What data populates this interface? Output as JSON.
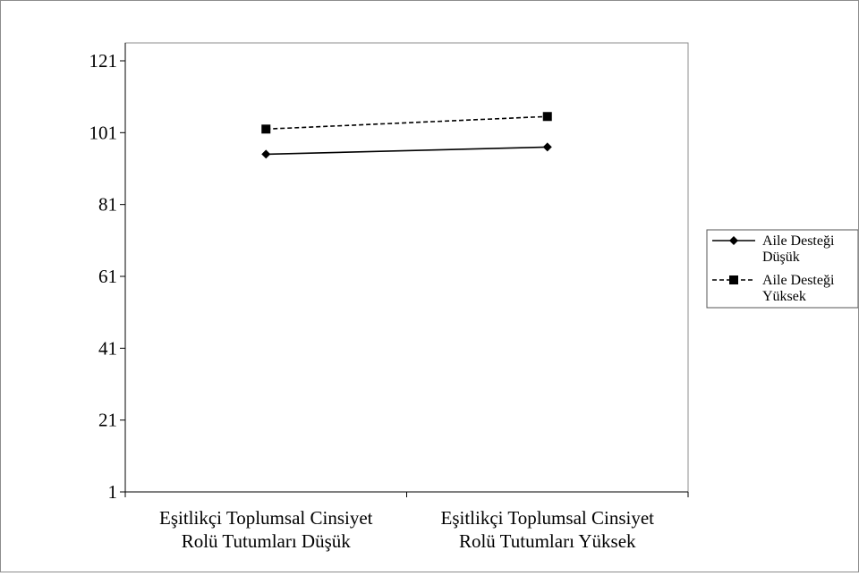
{
  "chart_data": {
    "type": "line",
    "categories": [
      [
        "Eşitlikçi Toplumsal Cinsiyet",
        "Rolü Tutumları Düşük"
      ],
      [
        "Eşitlikçi Toplumsal Cinsiyet",
        "Rolü Tutumları Yüksek"
      ]
    ],
    "ylim": [
      1,
      121
    ],
    "yticks": [
      1,
      21,
      41,
      61,
      81,
      101,
      121
    ],
    "grid": false,
    "legend_position": "right",
    "series": [
      {
        "name": [
          "Aile Desteği",
          "Düşük"
        ],
        "values": [
          95,
          97
        ],
        "marker": "diamond",
        "line_style": "solid",
        "color": "#000000"
      },
      {
        "name": [
          "Aile Desteği",
          "Yüksek"
        ],
        "values": [
          102,
          105.5
        ],
        "marker": "square",
        "line_style": "dashed",
        "color": "#000000"
      }
    ]
  }
}
